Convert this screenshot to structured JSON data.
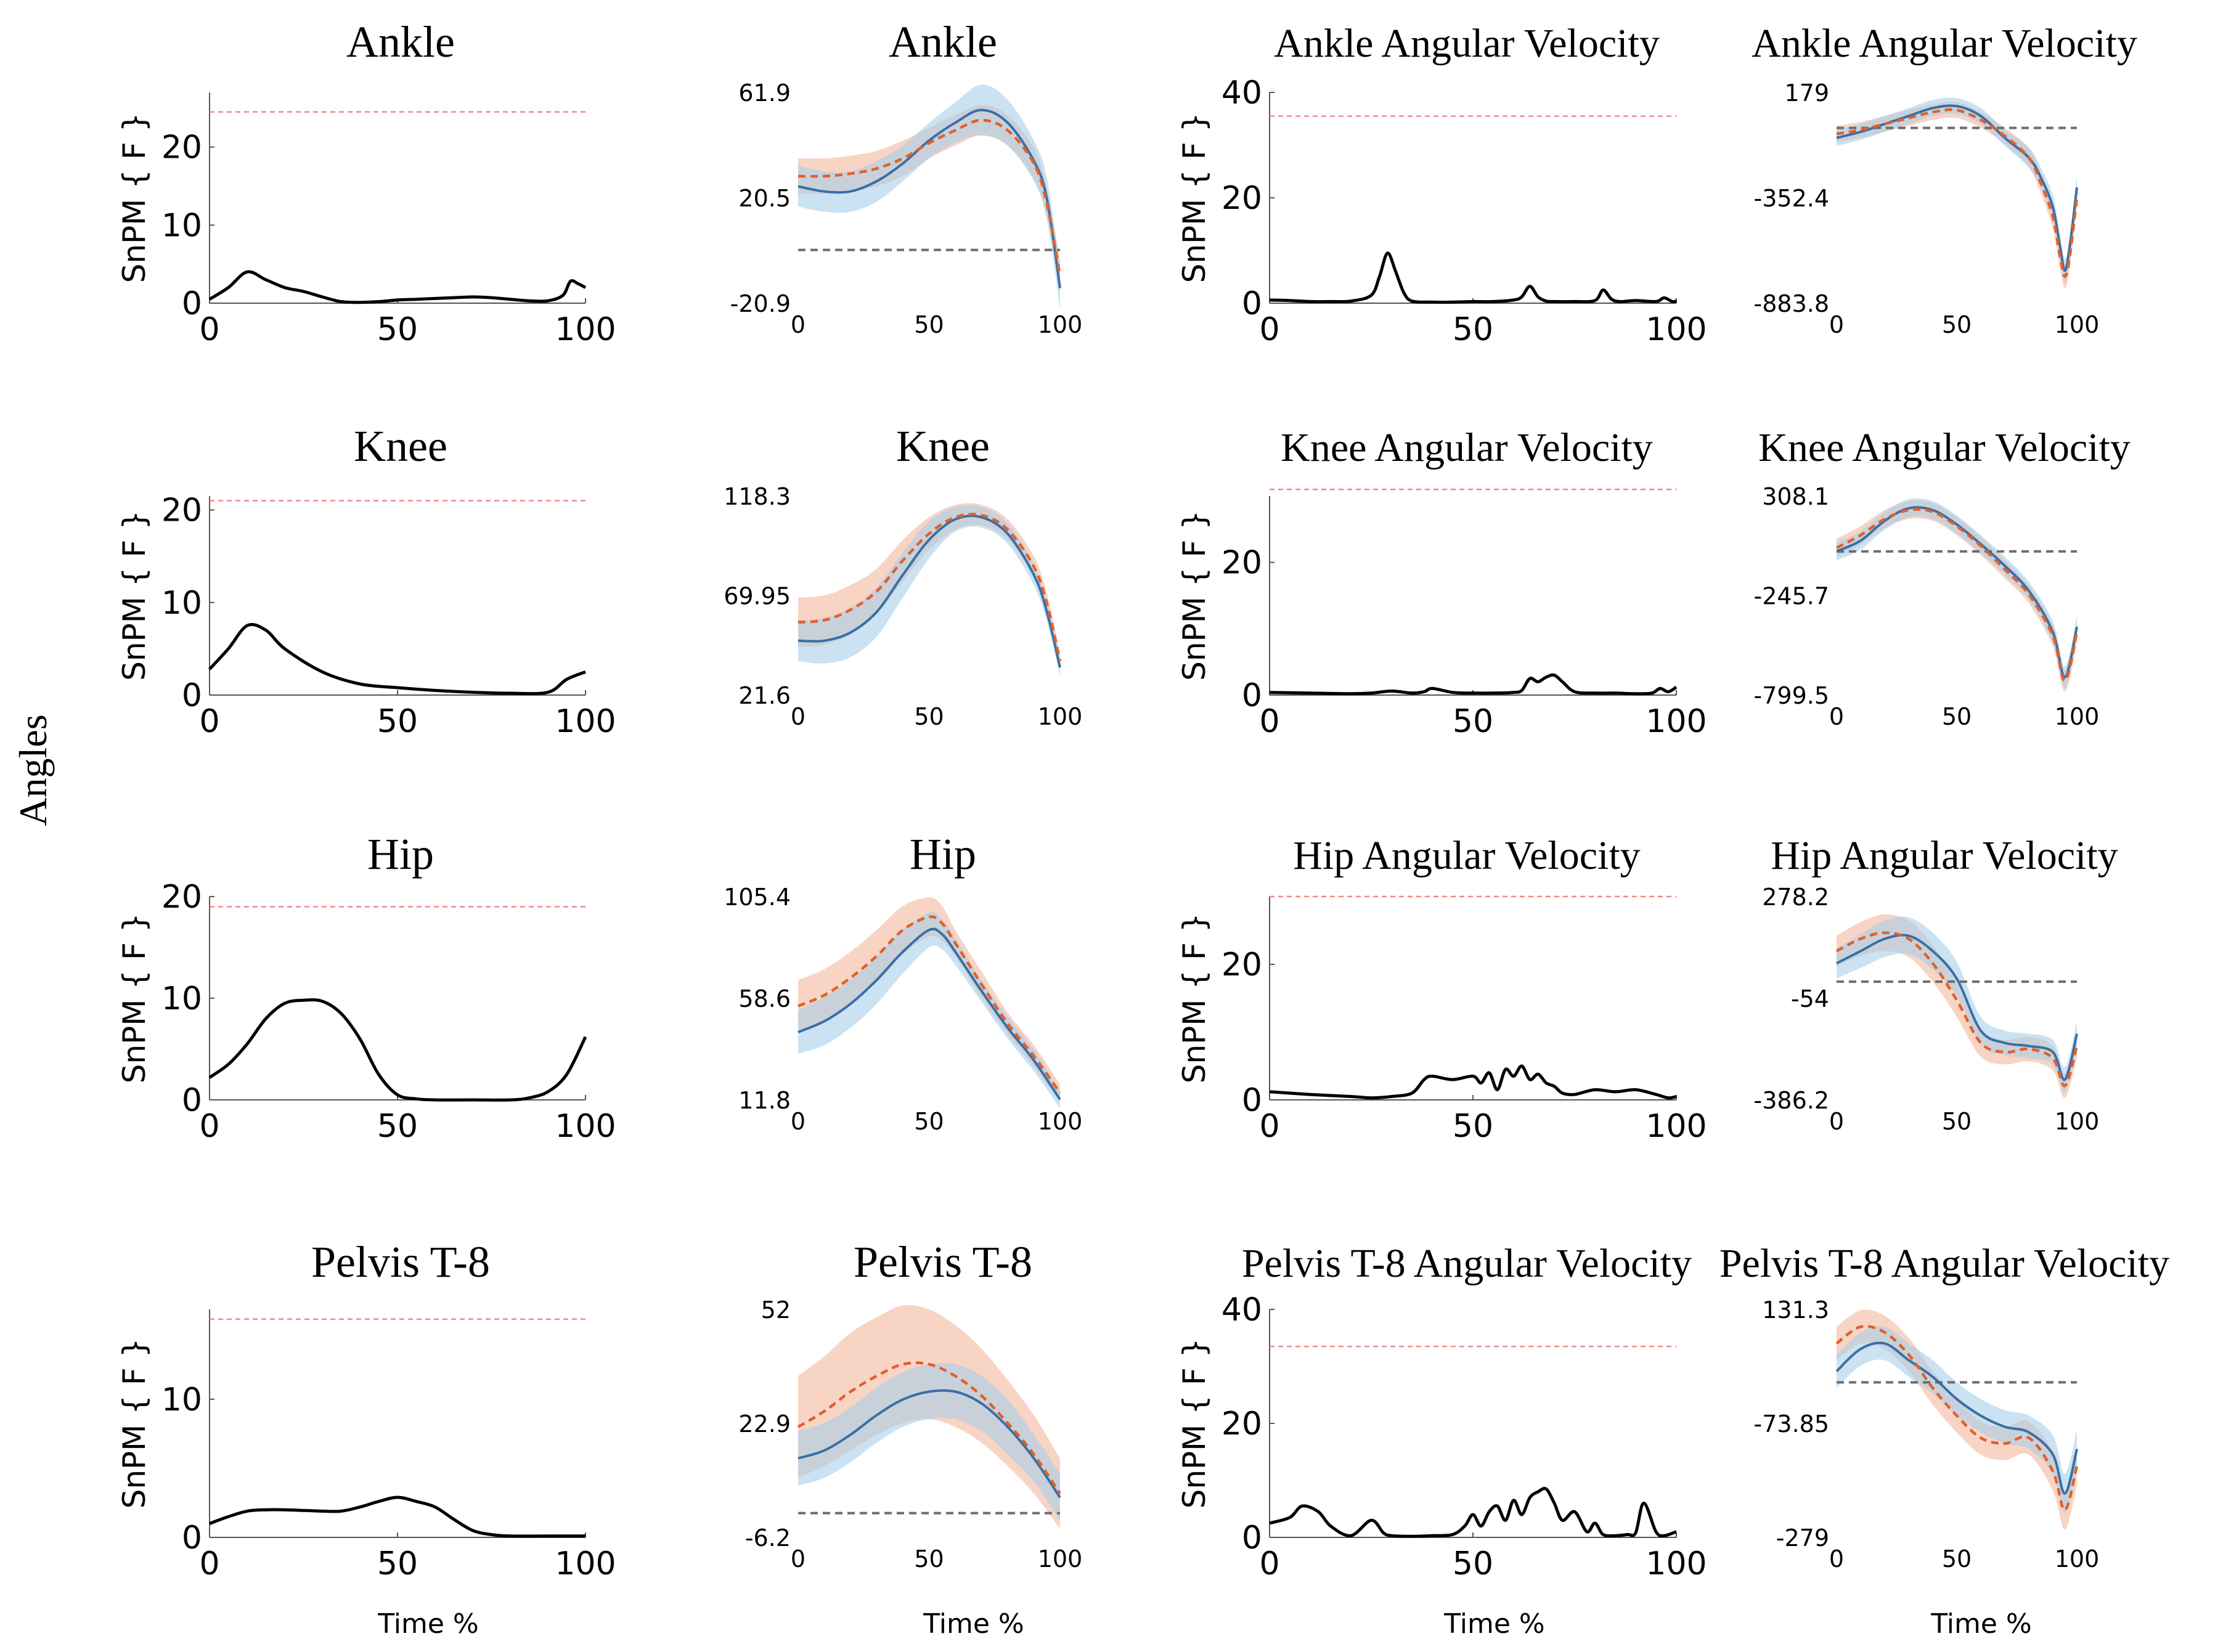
{
  "figure": {
    "row_label": "Angles",
    "time_label": "Time %",
    "snpm_label": "SnPM { F }",
    "colors": {
      "curve": "#000000",
      "threshold": "#f08a8a",
      "mean_blue": "#3a6ea5",
      "band_blue": "#a9cfea",
      "mean_orange": "#e0612b",
      "band_orange": "#f3b89c",
      "zero_line": "#6e6e6e"
    }
  },
  "chart_data": [
    {
      "id": "snpm-ankle",
      "type": "line",
      "kind": "snpm",
      "title": "Ankle",
      "xlim": [
        0,
        100
      ],
      "ylim": [
        0,
        27
      ],
      "yticks": [
        0,
        10,
        20
      ],
      "xticks": [
        0,
        50,
        100
      ],
      "threshold": 24.5,
      "x": [
        0,
        5,
        10,
        15,
        20,
        25,
        30,
        35,
        40,
        45,
        50,
        55,
        60,
        65,
        70,
        75,
        80,
        85,
        90,
        94,
        96,
        98,
        100
      ],
      "y": [
        0.5,
        2,
        4,
        3,
        2,
        1.5,
        0.8,
        0.2,
        0.1,
        0.2,
        0.4,
        0.5,
        0.6,
        0.7,
        0.8,
        0.7,
        0.5,
        0.3,
        0.3,
        1,
        2.8,
        2.5,
        2
      ]
    },
    {
      "id": "mean-ankle",
      "type": "line",
      "kind": "mean",
      "title": "Ankle",
      "xlim": [
        0,
        100
      ],
      "ylim": [
        -20.9,
        61.9
      ],
      "ytick_labels": [
        "61.9",
        "20.5",
        "-20.9"
      ],
      "xticks": [
        0,
        50,
        100
      ],
      "zero_line": 0,
      "x": [
        0,
        10,
        20,
        30,
        40,
        50,
        60,
        70,
        80,
        90,
        95,
        100
      ],
      "blue": {
        "mean": [
          25,
          23,
          23,
          27,
          34,
          43,
          50,
          55,
          50,
          35,
          20,
          -15
        ],
        "sd": [
          8,
          8,
          8,
          8,
          7,
          7,
          8,
          10,
          9,
          8,
          8,
          8
        ]
      },
      "orange": {
        "mean": [
          29,
          29,
          30,
          32,
          36,
          42,
          47,
          51,
          47,
          34,
          18,
          -10
        ],
        "sd": [
          7,
          7,
          7,
          7,
          7,
          6,
          6,
          6,
          6,
          6,
          6,
          6
        ]
      }
    },
    {
      "id": "snpm-ankle-vel",
      "type": "line",
      "kind": "snpm",
      "title": "Ankle Angular Velocity",
      "xlim": [
        0,
        100
      ],
      "ylim": [
        0,
        40
      ],
      "yticks": [
        0,
        20,
        40
      ],
      "xticks": [
        0,
        50,
        100
      ],
      "threshold": 35.5,
      "x": [
        0,
        5,
        10,
        15,
        20,
        25,
        27,
        29,
        31,
        33,
        35,
        40,
        45,
        50,
        55,
        60,
        62,
        64,
        66,
        68,
        70,
        75,
        80,
        82,
        84,
        86,
        90,
        95,
        97,
        99,
        100
      ],
      "y": [
        0.6,
        0.5,
        0.3,
        0.3,
        0.4,
        1.5,
        5,
        9.5,
        6,
        2,
        0.4,
        0.2,
        0.2,
        0.3,
        0.3,
        0.6,
        1.2,
        3.2,
        1.2,
        0.4,
        0.3,
        0.3,
        0.5,
        2.5,
        0.8,
        0.3,
        0.5,
        0.3,
        1,
        0.3,
        0.4
      ]
    },
    {
      "id": "mean-ankle-vel",
      "type": "line",
      "kind": "mean",
      "title": "Ankle Angular Velocity",
      "xlim": [
        0,
        100
      ],
      "ylim": [
        -883.8,
        179
      ],
      "ytick_labels": [
        "179",
        "-352.4",
        "-883.8"
      ],
      "xticks": [
        0,
        50,
        100
      ],
      "zero_line": 0,
      "x": [
        0,
        10,
        20,
        30,
        40,
        50,
        60,
        70,
        80,
        85,
        90,
        93,
        95,
        97,
        100
      ],
      "blue": {
        "mean": [
          -50,
          -20,
          20,
          60,
          100,
          110,
          60,
          -50,
          -150,
          -250,
          -400,
          -600,
          -720,
          -600,
          -300
        ],
        "sd": [
          40,
          40,
          40,
          40,
          40,
          40,
          40,
          40,
          50,
          50,
          60,
          60,
          60,
          60,
          60
        ]
      },
      "orange": {
        "mean": [
          -30,
          -10,
          20,
          50,
          80,
          90,
          40,
          -40,
          -150,
          -280,
          -450,
          -650,
          -750,
          -650,
          -350
        ],
        "sd": [
          40,
          40,
          40,
          40,
          40,
          40,
          40,
          40,
          50,
          50,
          60,
          60,
          60,
          60,
          60
        ]
      }
    },
    {
      "id": "snpm-knee",
      "type": "line",
      "kind": "snpm",
      "title": "Knee",
      "xlim": [
        0,
        100
      ],
      "ylim": [
        0,
        21.5
      ],
      "yticks": [
        0,
        10,
        20
      ],
      "xticks": [
        0,
        50,
        100
      ],
      "threshold": 21,
      "x": [
        0,
        5,
        10,
        15,
        20,
        30,
        40,
        50,
        60,
        70,
        80,
        90,
        95,
        100
      ],
      "y": [
        2.8,
        5,
        7.5,
        7,
        5,
        2.5,
        1.2,
        0.8,
        0.5,
        0.3,
        0.2,
        0.3,
        1.7,
        2.5
      ]
    },
    {
      "id": "mean-knee",
      "type": "line",
      "kind": "mean",
      "title": "Knee",
      "xlim": [
        0,
        100
      ],
      "ylim": [
        21.6,
        118.3
      ],
      "ytick_labels": [
        "118.3",
        "69.95",
        "21.6"
      ],
      "xticks": [
        0,
        50,
        100
      ],
      "x": [
        0,
        10,
        20,
        30,
        40,
        50,
        60,
        70,
        80,
        90,
        95,
        100
      ],
      "blue": {
        "mean": [
          48,
          48,
          52,
          62,
          80,
          97,
          107,
          108,
          100,
          80,
          62,
          35
        ],
        "sd": [
          10,
          11,
          12,
          12,
          11,
          9,
          6,
          5,
          5,
          5,
          5,
          4
        ]
      },
      "orange": {
        "mean": [
          57,
          58,
          63,
          72,
          87,
          100,
          108,
          109,
          102,
          84,
          66,
          38
        ],
        "sd": [
          12,
          12,
          12,
          11,
          10,
          8,
          6,
          5,
          5,
          5,
          5,
          4
        ]
      }
    },
    {
      "id": "snpm-knee-vel",
      "type": "line",
      "kind": "snpm",
      "title": "Knee Angular Velocity",
      "xlim": [
        0,
        100
      ],
      "ylim": [
        0,
        30
      ],
      "yticks": [
        0,
        20
      ],
      "xticks": [
        0,
        50,
        100
      ],
      "threshold": 31,
      "x": [
        0,
        10,
        20,
        25,
        30,
        35,
        38,
        40,
        45,
        50,
        55,
        60,
        62,
        64,
        66,
        68,
        70,
        72,
        75,
        80,
        85,
        90,
        94,
        96,
        98,
        100
      ],
      "y": [
        0.4,
        0.3,
        0.2,
        0.3,
        0.6,
        0.3,
        0.5,
        1,
        0.4,
        0.3,
        0.3,
        0.4,
        0.7,
        2.5,
        2,
        2.7,
        3,
        2,
        0.5,
        0.3,
        0.3,
        0.2,
        0.3,
        1,
        0.5,
        1.2
      ]
    },
    {
      "id": "mean-knee-vel",
      "type": "line",
      "kind": "mean",
      "title": "Knee Angular Velocity",
      "xlim": [
        0,
        100
      ],
      "ylim": [
        -799.5,
        308.1
      ],
      "ytick_labels": [
        "308.1",
        "-245.7",
        "-799.5"
      ],
      "xticks": [
        0,
        50,
        100
      ],
      "zero_line": 0,
      "x": [
        0,
        10,
        20,
        30,
        40,
        50,
        60,
        70,
        80,
        90,
        95,
        100
      ],
      "blue": {
        "mean": [
          0,
          60,
          170,
          240,
          230,
          150,
          40,
          -80,
          -220,
          -450,
          -700,
          -420
        ],
        "sd": [
          50,
          50,
          50,
          50,
          50,
          50,
          50,
          50,
          50,
          60,
          60,
          60
        ]
      },
      "orange": {
        "mean": [
          20,
          90,
          180,
          230,
          220,
          140,
          30,
          -100,
          -240,
          -470,
          -720,
          -450
        ],
        "sd": [
          50,
          50,
          50,
          50,
          50,
          50,
          50,
          50,
          50,
          60,
          60,
          60
        ]
      }
    },
    {
      "id": "snpm-hip",
      "type": "line",
      "kind": "snpm",
      "title": "Hip",
      "xlim": [
        0,
        100
      ],
      "ylim": [
        0,
        20
      ],
      "yticks": [
        0,
        10,
        20
      ],
      "xticks": [
        0,
        50,
        100
      ],
      "threshold": 19,
      "x": [
        0,
        5,
        10,
        15,
        20,
        25,
        30,
        35,
        40,
        45,
        50,
        55,
        60,
        70,
        80,
        85,
        90,
        95,
        100
      ],
      "y": [
        2.2,
        3.5,
        5.5,
        8,
        9.5,
        9.8,
        9.7,
        8.5,
        6,
        2.5,
        0.5,
        0.1,
        0,
        0,
        0,
        0.2,
        0.8,
        2.5,
        6.2
      ]
    },
    {
      "id": "mean-hip",
      "type": "line",
      "kind": "mean",
      "title": "Hip",
      "xlim": [
        0,
        100
      ],
      "ylim": [
        11.8,
        105.4
      ],
      "ytick_labels": [
        "105.4",
        "58.6",
        "11.8"
      ],
      "xticks": [
        0,
        50,
        100
      ],
      "x": [
        0,
        10,
        20,
        30,
        40,
        50,
        55,
        60,
        70,
        80,
        90,
        100
      ],
      "blue": {
        "mean": [
          43,
          48,
          56,
          67,
          80,
          90,
          88,
          80,
          62,
          45,
          30,
          12
        ],
        "sd": [
          10,
          11,
          11,
          11,
          10,
          8,
          7,
          6,
          5,
          5,
          5,
          4
        ]
      },
      "orange": {
        "mean": [
          55,
          60,
          68,
          78,
          90,
          96,
          93,
          84,
          65,
          47,
          32,
          15
        ],
        "sd": [
          12,
          12,
          12,
          12,
          11,
          9,
          8,
          6,
          6,
          5,
          5,
          4
        ]
      }
    },
    {
      "id": "snpm-hip-vel",
      "type": "line",
      "kind": "snpm",
      "title": "Hip Angular Velocity",
      "xlim": [
        0,
        100
      ],
      "ylim": [
        0,
        30
      ],
      "yticks": [
        0,
        20
      ],
      "xticks": [
        0,
        50,
        100
      ],
      "threshold": 30,
      "x": [
        0,
        10,
        20,
        25,
        30,
        35,
        38,
        40,
        45,
        50,
        52,
        54,
        56,
        58,
        60,
        62,
        64,
        66,
        68,
        70,
        72,
        75,
        80,
        85,
        90,
        95,
        98,
        100
      ],
      "y": [
        1.2,
        0.8,
        0.5,
        0.3,
        0.5,
        1,
        3,
        3.5,
        3,
        3.5,
        2.5,
        4,
        1.5,
        4.5,
        3.5,
        5,
        3,
        3.8,
        2.5,
        2,
        1,
        0.8,
        1.5,
        1.2,
        1.5,
        0.8,
        0.3,
        0.5
      ]
    },
    {
      "id": "mean-hip-vel",
      "type": "line",
      "kind": "mean",
      "title": "Hip Angular Velocity",
      "xlim": [
        0,
        100
      ],
      "ylim": [
        -386.2,
        278.2
      ],
      "ytick_labels": [
        "278.2",
        "-54",
        "-386.2"
      ],
      "xticks": [
        0,
        50,
        100
      ],
      "zero_line": 0,
      "x": [
        0,
        10,
        20,
        30,
        40,
        50,
        60,
        70,
        80,
        90,
        95,
        100
      ],
      "blue": {
        "mean": [
          60,
          100,
          140,
          150,
          100,
          10,
          -160,
          -200,
          -210,
          -230,
          -320,
          -170
        ],
        "sd": [
          50,
          55,
          60,
          60,
          60,
          55,
          45,
          40,
          40,
          40,
          40,
          40
        ]
      },
      "orange": {
        "mean": [
          100,
          140,
          160,
          140,
          60,
          -60,
          -200,
          -230,
          -220,
          -250,
          -340,
          -210
        ],
        "sd": [
          50,
          55,
          60,
          60,
          60,
          55,
          45,
          40,
          40,
          40,
          40,
          40
        ]
      }
    },
    {
      "id": "snpm-pelvis",
      "type": "line",
      "kind": "snpm",
      "title": "Pelvis T-8",
      "xlim": [
        0,
        100
      ],
      "ylim": [
        0,
        16.5
      ],
      "yticks": [
        0,
        10
      ],
      "xticks": [
        0,
        50,
        100
      ],
      "threshold": 15.8,
      "x": [
        0,
        5,
        10,
        15,
        20,
        30,
        35,
        40,
        45,
        50,
        55,
        60,
        65,
        70,
        75,
        80,
        90,
        100
      ],
      "y": [
        1,
        1.5,
        1.9,
        2,
        2,
        1.9,
        1.9,
        2.2,
        2.6,
        2.9,
        2.6,
        2.2,
        1.3,
        0.5,
        0.2,
        0.1,
        0.1,
        0.1
      ]
    },
    {
      "id": "mean-pelvis",
      "type": "line",
      "kind": "mean",
      "title": "Pelvis T-8",
      "xlim": [
        0,
        100
      ],
      "ylim": [
        -6.2,
        52
      ],
      "ytick_labels": [
        "52",
        "22.9",
        "-6.2"
      ],
      "xticks": [
        0,
        50,
        100
      ],
      "zero_line": 0,
      "x": [
        0,
        10,
        20,
        30,
        40,
        50,
        60,
        70,
        80,
        90,
        100
      ],
      "blue": {
        "mean": [
          14,
          16,
          20,
          25,
          29,
          31,
          31,
          28,
          22,
          14,
          4
        ],
        "sd": [
          7,
          7,
          7,
          7,
          7,
          7,
          7,
          7,
          7,
          6,
          6
        ]
      },
      "orange": {
        "mean": [
          22,
          26,
          31,
          35,
          38,
          38,
          35,
          30,
          23,
          15,
          5
        ],
        "sd": [
          13,
          14,
          15,
          15,
          15,
          14,
          13,
          12,
          11,
          10,
          9
        ]
      }
    },
    {
      "id": "snpm-pelvis-vel",
      "type": "line",
      "kind": "snpm",
      "title": "Pelvis T-8 Angular Velocity",
      "xlim": [
        0,
        100
      ],
      "ylim": [
        0,
        40
      ],
      "yticks": [
        0,
        20,
        40
      ],
      "xticks": [
        0,
        50,
        100
      ],
      "threshold": 33.5,
      "x": [
        0,
        5,
        8,
        12,
        15,
        20,
        25,
        28,
        30,
        35,
        40,
        45,
        48,
        50,
        52,
        54,
        56,
        58,
        60,
        62,
        64,
        66,
        68,
        70,
        72,
        75,
        78,
        80,
        82,
        85,
        88,
        90,
        92,
        95,
        97,
        100
      ],
      "y": [
        2.5,
        3.5,
        5.5,
        4.5,
        2,
        0.3,
        3,
        0.8,
        0.3,
        0.2,
        0.3,
        0.5,
        2,
        4,
        2,
        4.5,
        5.5,
        3,
        6.5,
        4,
        7,
        8,
        8.5,
        6,
        3,
        4.5,
        1,
        2.5,
        0.5,
        0.3,
        0.5,
        0.8,
        6,
        1,
        0.3,
        1
      ]
    },
    {
      "id": "mean-pelvis-vel",
      "type": "line",
      "kind": "mean",
      "title": "Pelvis T-8 Angular Velocity",
      "xlim": [
        0,
        100
      ],
      "ylim": [
        -279,
        131.3
      ],
      "ytick_labels": [
        "131.3",
        "-73.85",
        "-279"
      ],
      "xticks": [
        0,
        50,
        100
      ],
      "zero_line": 0,
      "x": [
        0,
        10,
        20,
        30,
        40,
        50,
        60,
        70,
        80,
        90,
        95,
        100
      ],
      "blue": {
        "mean": [
          20,
          60,
          70,
          40,
          10,
          -30,
          -60,
          -80,
          -90,
          -130,
          -200,
          -120
        ],
        "sd": [
          30,
          30,
          30,
          30,
          30,
          30,
          30,
          30,
          30,
          35,
          35,
          35
        ]
      },
      "orange": {
        "mean": [
          70,
          100,
          90,
          50,
          -10,
          -60,
          -100,
          -110,
          -100,
          -160,
          -230,
          -150
        ],
        "sd": [
          30,
          30,
          30,
          30,
          30,
          30,
          30,
          30,
          30,
          35,
          35,
          35
        ]
      }
    }
  ]
}
